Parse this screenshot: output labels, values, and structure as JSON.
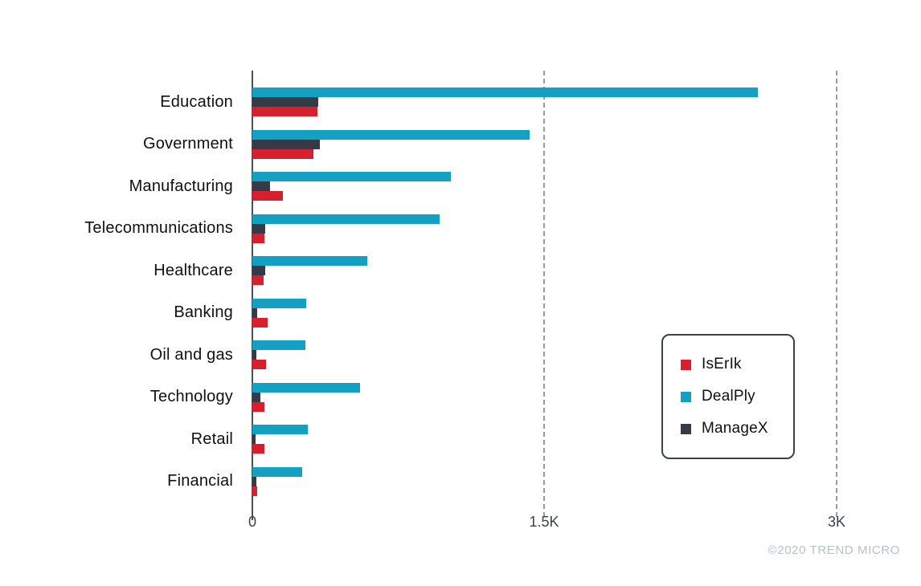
{
  "watermark": "©2020 TREND MICRO",
  "chart_data": {
    "type": "bar",
    "orientation": "horizontal",
    "title": "",
    "xlabel": "",
    "ylabel": "",
    "categories": [
      "Education",
      "Government",
      "Manufacturing",
      "Telecommunications",
      "Healthcare",
      "Banking",
      "Oil and gas",
      "Technology",
      "Retail",
      "Financial"
    ],
    "series": [
      {
        "name": "IsErIk",
        "color": "#d6202e",
        "values": [
          335,
          315,
          155,
          60,
          58,
          78,
          70,
          62,
          60,
          25
        ]
      },
      {
        "name": "DealPly",
        "color": "#14a0c2",
        "values": [
          2595,
          1425,
          1020,
          960,
          590,
          278,
          272,
          555,
          285,
          256
        ]
      },
      {
        "name": "ManageX",
        "color": "#343b46",
        "values": [
          340,
          345,
          90,
          65,
          68,
          25,
          21,
          40,
          17,
          21
        ]
      }
    ],
    "bar_display_order_top_to_bottom": [
      "DealPly",
      "ManageX",
      "IsErIk"
    ],
    "x_axis": {
      "ticks": [
        "0",
        "1.5K",
        "3K"
      ],
      "tick_values": [
        0,
        1500,
        3000
      ],
      "min": 0,
      "max": 3000,
      "gridlines": "dashed vertical at 1.5K and 3K"
    },
    "legend": {
      "position": "right-middle",
      "items": [
        "IsErIk",
        "DealPly",
        "ManageX"
      ]
    }
  }
}
